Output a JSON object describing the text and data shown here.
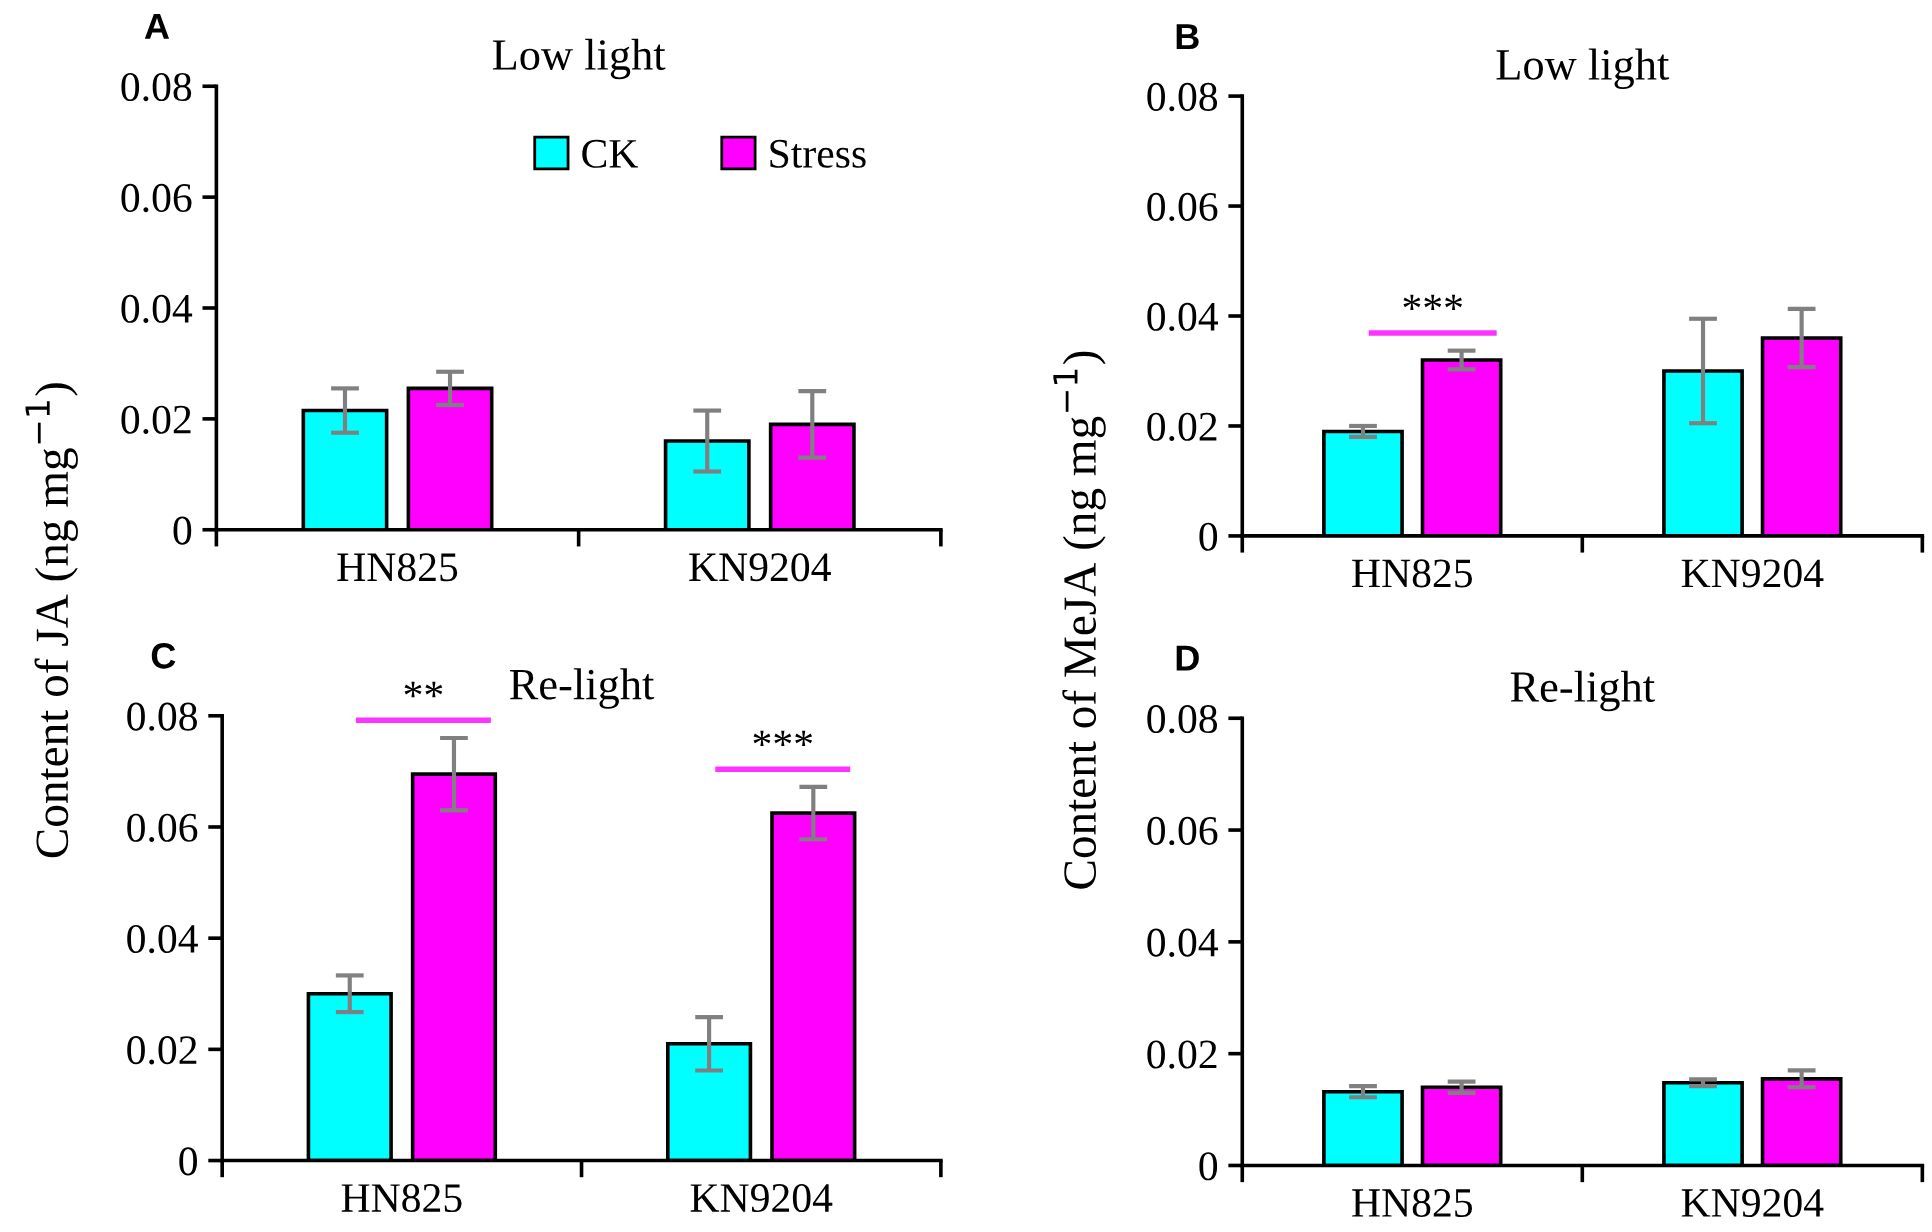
{
  "chart_data": [
    {
      "type": "bar",
      "title": "Low light",
      "categories": [
        "HN825",
        "KN9204"
      ],
      "series": [
        {
          "name": "CK",
          "color": "#00ffff",
          "values": [
            0.0215,
            0.016
          ],
          "errors": [
            0.004,
            0.0055
          ]
        },
        {
          "name": "Stress",
          "color": "#ff00ff",
          "values": [
            0.0255,
            0.019
          ],
          "errors": [
            0.003,
            0.006
          ]
        }
      ],
      "ylim": [
        0,
        0.08
      ],
      "yticks": [
        0,
        0.02,
        0.04,
        0.06,
        0.08
      ],
      "grid": false,
      "legend": "top right",
      "annotations": [
        "A"
      ]
    },
    {
      "type": "bar",
      "title": "Low light",
      "categories": [
        "HN825",
        "KN9204"
      ],
      "series": [
        {
          "color": "#00ffff",
          "values": [
            0.019,
            0.03
          ],
          "errors": [
            0.001,
            0.0095
          ]
        },
        {
          "color": "#ff00ff",
          "values": [
            0.032,
            0.036
          ],
          "errors": [
            0.0017,
            0.0053
          ]
        }
      ],
      "ylim": [
        0,
        0.08
      ],
      "yticks": [
        0,
        0.02,
        0.04,
        0.06,
        0.08
      ],
      "grid": false,
      "legend": false,
      "annotations": [
        "B",
        "***"
      ]
    },
    {
      "type": "bar",
      "title": "Re-light",
      "ylabel": "Content of JA (ng mg$^{−1}$)",
      "categories": [
        "HN825",
        "KN9204"
      ],
      "series": [
        {
          "color": "#00ffff",
          "values": [
            0.03,
            0.021
          ],
          "errors": [
            0.0033,
            0.0048
          ]
        },
        {
          "color": "#ff00ff",
          "values": [
            0.0695,
            0.0625
          ],
          "errors": [
            0.0065,
            0.0047
          ]
        }
      ],
      "ylim": [
        0,
        0.08
      ],
      "yticks": [
        0,
        0.02,
        0.04,
        0.06,
        0.08
      ],
      "grid": false,
      "legend": false,
      "annotations": [
        "C",
        "**",
        "***"
      ]
    },
    {
      "type": "bar",
      "title": "Re-light",
      "ylabel": "Content of MeJA (ng mg$^{−1}$)",
      "categories": [
        "HN825",
        "KN9204"
      ],
      "series": [
        {
          "color": "#00ffff",
          "values": [
            0.0132,
            0.0148
          ],
          "errors": [
            0.001,
            0.0006
          ]
        },
        {
          "color": "#ff00ff",
          "values": [
            0.014,
            0.0155
          ],
          "errors": [
            0.001,
            0.0015
          ]
        }
      ],
      "ylim": [
        0,
        0.08
      ],
      "yticks": [
        0,
        0.02,
        0.04,
        0.06,
        0.08
      ],
      "grid": false,
      "legend": false,
      "annotations": [
        "D"
      ]
    }
  ]
}
